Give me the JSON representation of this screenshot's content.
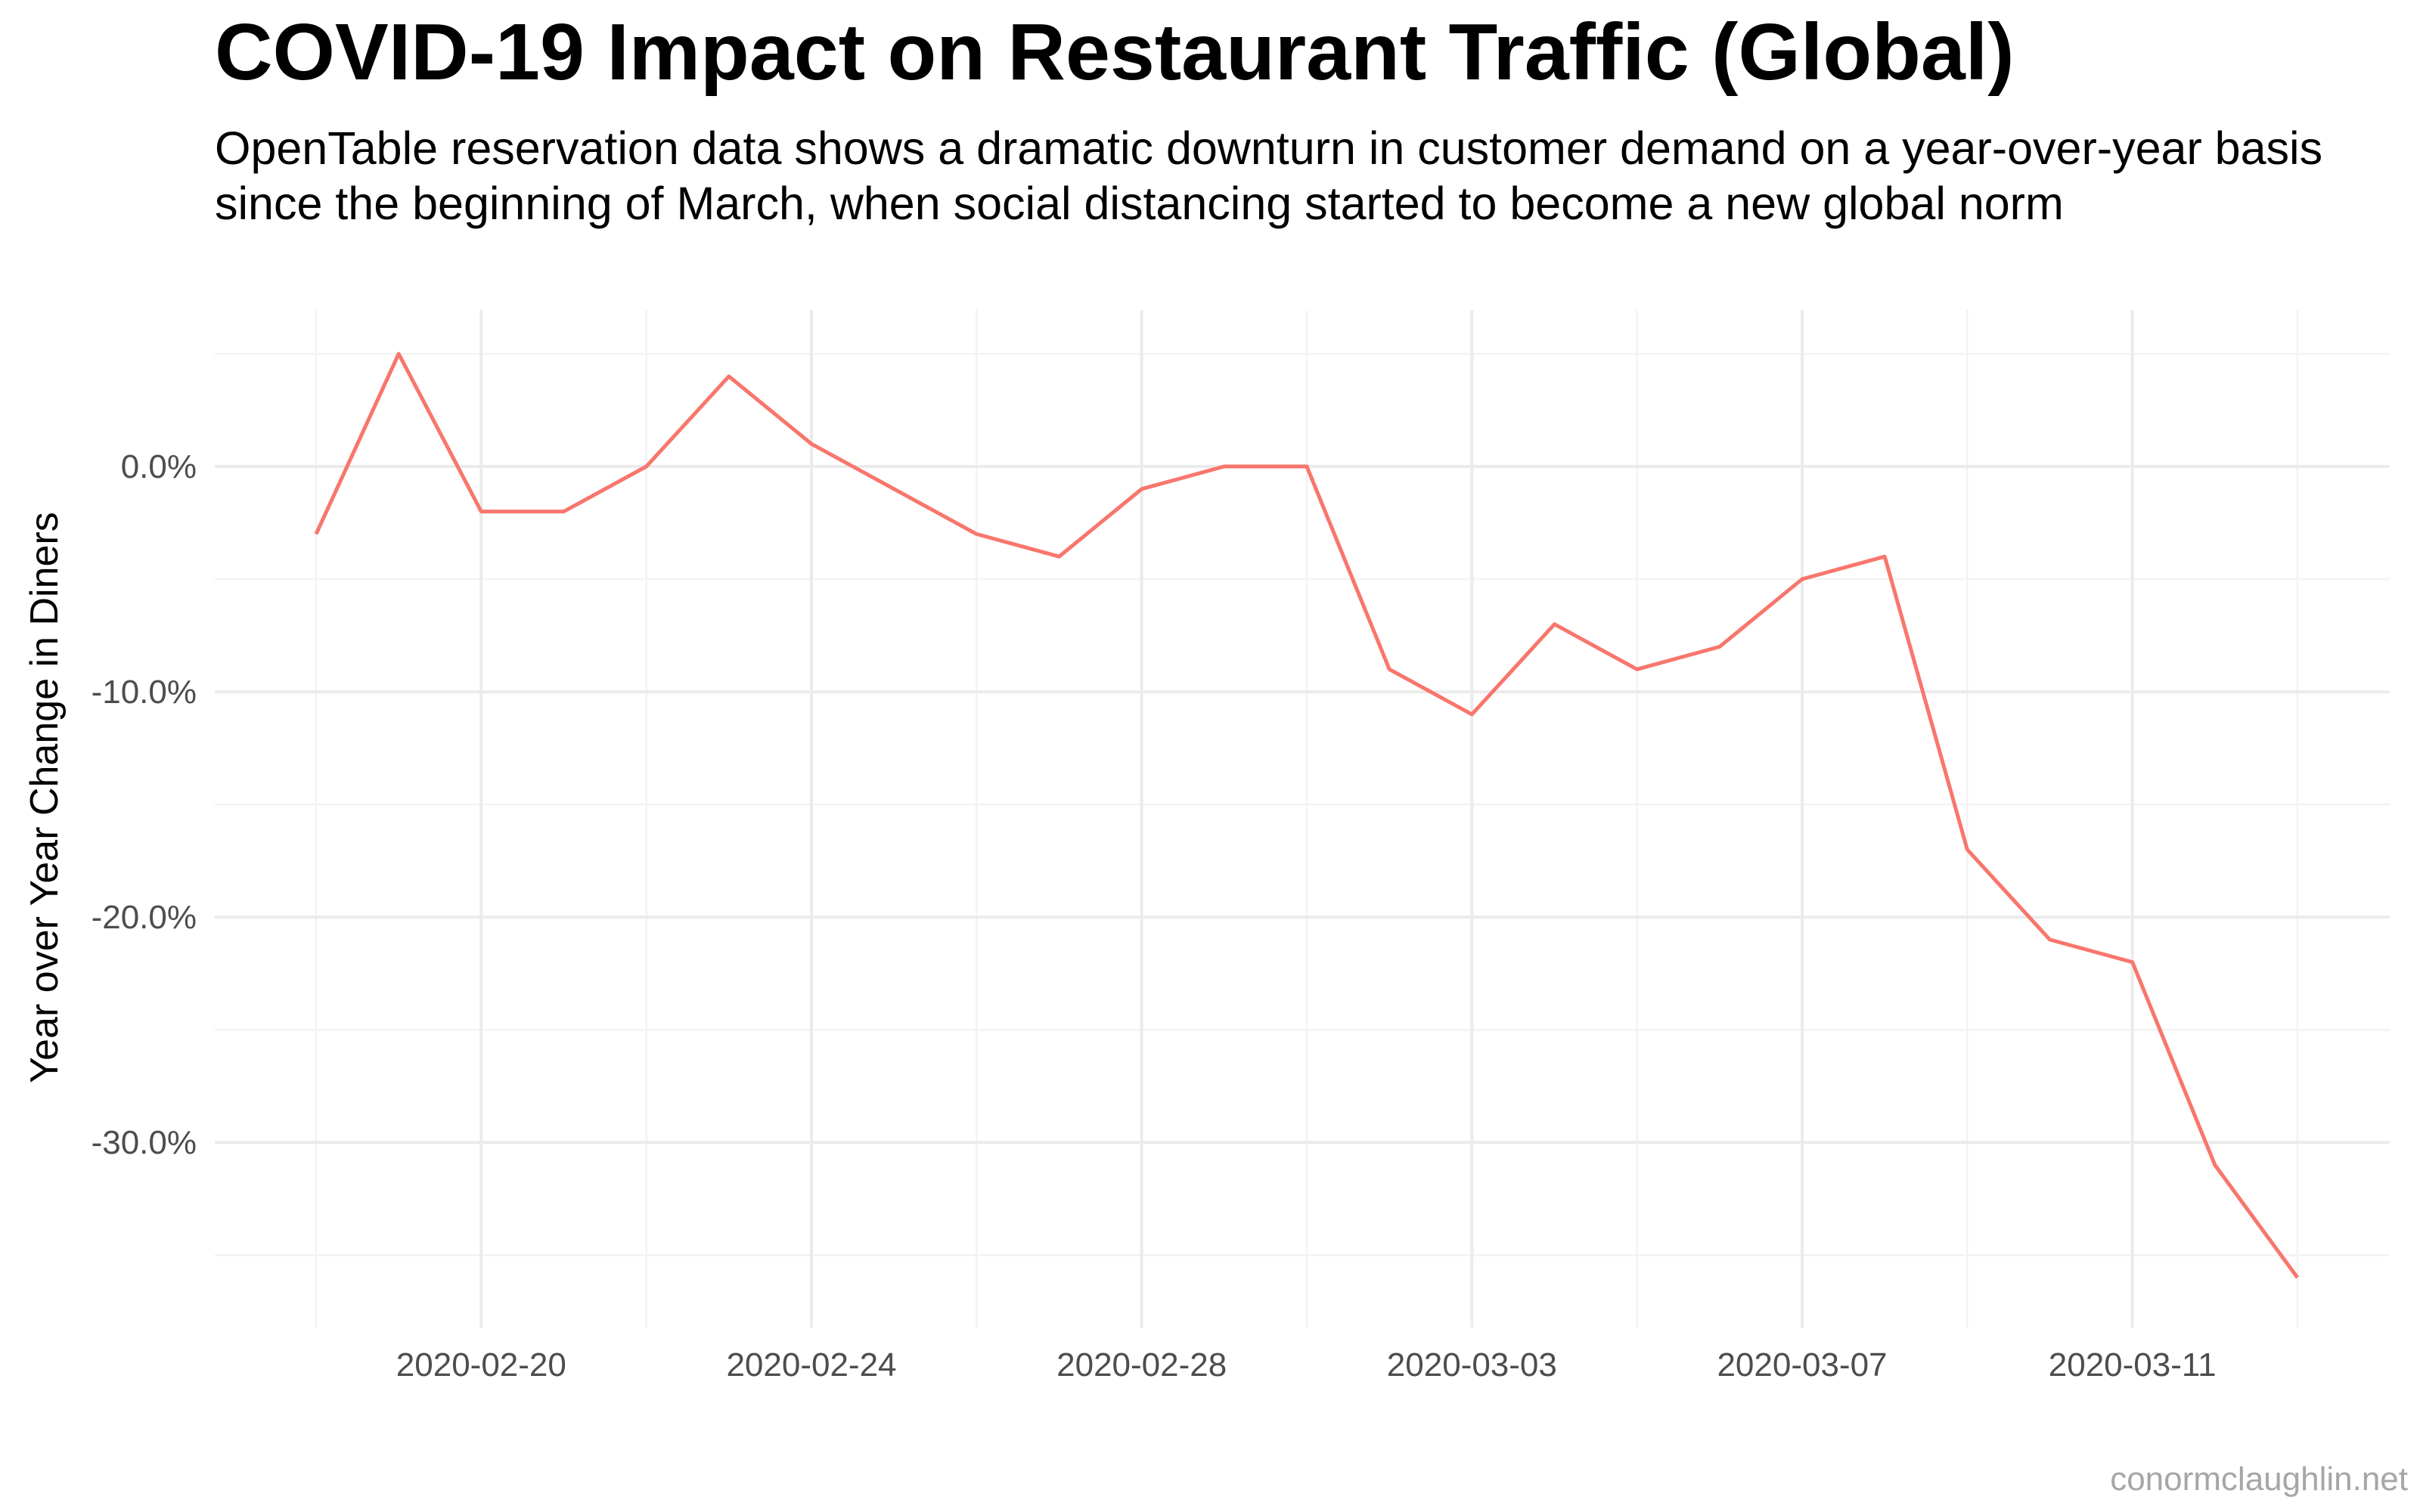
{
  "title": "COVID-19 Impact on Restaurant Traffic (Global)",
  "subtitle": "OpenTable reservation data shows a dramatic downturn in customer demand on a year-over-year basis since the beginning of March, when social distancing started to become a new global norm",
  "caption": "conormclaughlin.net",
  "colors": {
    "line": "#F8766D",
    "grid_major": "#EBEBEB",
    "grid_minor": "#F3F3F3",
    "tick_label": "#4D4D4D"
  },
  "chart_data": {
    "type": "line",
    "ylabel": "Year over Year Change in Diners",
    "xlabel": "",
    "grid": true,
    "legend": "none",
    "x_tick_labels": [
      "2020-02-20",
      "2020-02-24",
      "2020-02-28",
      "2020-03-03",
      "2020-03-07",
      "2020-03-11"
    ],
    "y_tick_labels": [
      "0.0%",
      "-10.0%",
      "-20.0%",
      "-30.0%"
    ],
    "y_ticks": [
      0,
      -10,
      -20,
      -30
    ],
    "ylim": [
      -36,
      5
    ],
    "series": [
      {
        "x": [
          "2020-02-18",
          "2020-02-19",
          "2020-02-20",
          "2020-02-21",
          "2020-02-22",
          "2020-02-23",
          "2020-02-24",
          "2020-02-25",
          "2020-02-26",
          "2020-02-27",
          "2020-02-28",
          "2020-02-29",
          "2020-03-01",
          "2020-03-02",
          "2020-03-03",
          "2020-03-04",
          "2020-03-05",
          "2020-03-06",
          "2020-03-07",
          "2020-03-08",
          "2020-03-09",
          "2020-03-10",
          "2020-03-11",
          "2020-03-12",
          "2020-03-13"
        ],
        "values": [
          -3,
          5,
          -2,
          -2,
          0,
          4,
          1,
          -1,
          -3,
          -4,
          -1,
          0,
          0,
          -9,
          -11,
          -7,
          -9,
          -8,
          -5,
          -4,
          -17,
          -21,
          -22,
          -31,
          -36
        ]
      }
    ]
  }
}
